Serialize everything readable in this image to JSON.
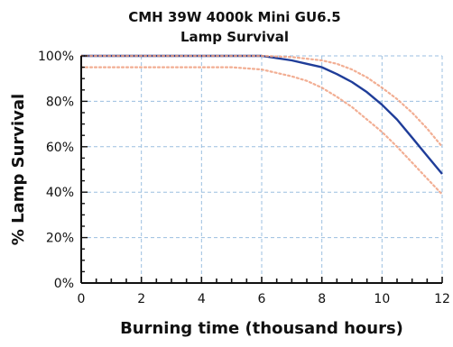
{
  "chart_data": {
    "type": "line",
    "title": "CMH 39W 4000k Mini GU6.5",
    "subtitle": "Lamp Survival",
    "xlabel": "Burning time (thousand hours)",
    "ylabel": "% Lamp Survival",
    "xlim": [
      0,
      12
    ],
    "ylim": [
      0,
      100
    ],
    "x_ticks": [
      "0",
      "2",
      "4",
      "6",
      "8",
      "10",
      "12"
    ],
    "y_ticks": [
      "0%",
      "20%",
      "40%",
      "60%",
      "80%",
      "100%"
    ],
    "grid": true,
    "legend": "none",
    "series": [
      {
        "role": "main",
        "color": "#1f3d99",
        "x": [
          0,
          2,
          4,
          5,
          6,
          6.5,
          7,
          7.5,
          8,
          8.5,
          9,
          9.5,
          10,
          10.5,
          11,
          11.5,
          12
        ],
        "y": [
          100,
          100,
          100,
          100,
          100,
          99,
          98,
          96.5,
          95,
          92,
          88.5,
          84,
          78.5,
          72,
          64,
          56,
          48
        ]
      },
      {
        "role": "upper-bound",
        "color": "#f0a080",
        "style": "dotted",
        "x": [
          0,
          2,
          4,
          6,
          7,
          8,
          8.5,
          9,
          9.5,
          10,
          10.5,
          11,
          11.5,
          12
        ],
        "y": [
          100,
          100,
          100,
          100,
          99.5,
          98,
          96.5,
          94,
          90.5,
          86,
          81,
          75,
          68,
          60
        ]
      },
      {
        "role": "lower-bound",
        "color": "#f0a080",
        "style": "dotted",
        "x": [
          0,
          2,
          4,
          5,
          6,
          6.5,
          7,
          7.5,
          8,
          8.5,
          9,
          9.5,
          10,
          10.5,
          11,
          11.5,
          12
        ],
        "y": [
          95,
          95,
          95,
          95,
          94,
          92.5,
          91,
          89,
          86,
          82,
          77.5,
          72,
          66.5,
          60,
          53,
          46,
          39
        ]
      }
    ]
  }
}
